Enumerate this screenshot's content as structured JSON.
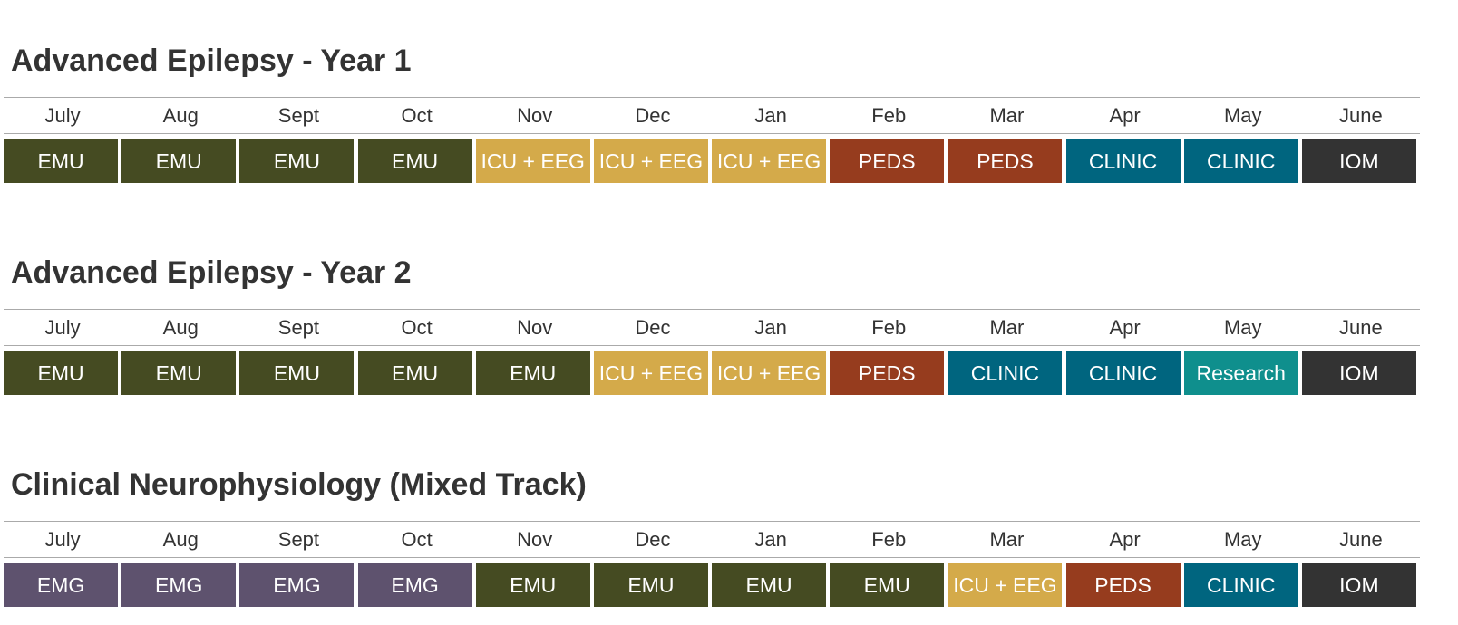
{
  "tracks": [
    {
      "title": "Advanced Epilepsy - Year 1",
      "months": [
        "July",
        "Aug",
        "Sept",
        "Oct",
        "Nov",
        "Dec",
        "Jan",
        "Feb",
        "Mar",
        "Apr",
        "May",
        "June"
      ],
      "rotations": [
        {
          "label": "EMU",
          "color": "#454b22"
        },
        {
          "label": "EMU",
          "color": "#454b22"
        },
        {
          "label": "EMU",
          "color": "#454b22"
        },
        {
          "label": "EMU",
          "color": "#454b22"
        },
        {
          "label": "ICU + EEG",
          "color": "#d4aa4a"
        },
        {
          "label": "ICU + EEG",
          "color": "#d4aa4a"
        },
        {
          "label": "ICU + EEG",
          "color": "#d4aa4a"
        },
        {
          "label": "PEDS",
          "color": "#963c1e"
        },
        {
          "label": "PEDS",
          "color": "#963c1e"
        },
        {
          "label": "CLINIC",
          "color": "#00657f"
        },
        {
          "label": "CLINIC",
          "color": "#00657f"
        },
        {
          "label": "IOM",
          "color": "#333333"
        }
      ]
    },
    {
      "title": "Advanced Epilepsy - Year 2",
      "months": [
        "July",
        "Aug",
        "Sept",
        "Oct",
        "Nov",
        "Dec",
        "Jan",
        "Feb",
        "Mar",
        "Apr",
        "May",
        "June"
      ],
      "rotations": [
        {
          "label": "EMU",
          "color": "#454b22"
        },
        {
          "label": "EMU",
          "color": "#454b22"
        },
        {
          "label": "EMU",
          "color": "#454b22"
        },
        {
          "label": "EMU",
          "color": "#454b22"
        },
        {
          "label": "EMU",
          "color": "#454b22"
        },
        {
          "label": "ICU + EEG",
          "color": "#d4aa4a"
        },
        {
          "label": "ICU + EEG",
          "color": "#d4aa4a"
        },
        {
          "label": "PEDS",
          "color": "#963c1e"
        },
        {
          "label": "CLINIC",
          "color": "#00657f"
        },
        {
          "label": "CLINIC",
          "color": "#00657f"
        },
        {
          "label": "Research",
          "color": "#0f8f8d"
        },
        {
          "label": "IOM",
          "color": "#333333"
        }
      ]
    },
    {
      "title": "Clinical Neurophysiology (Mixed Track)",
      "months": [
        "July",
        "Aug",
        "Sept",
        "Oct",
        "Nov",
        "Dec",
        "Jan",
        "Feb",
        "Mar",
        "Apr",
        "May",
        "June"
      ],
      "rotations": [
        {
          "label": "EMG",
          "color": "#5e526e"
        },
        {
          "label": "EMG",
          "color": "#5e526e"
        },
        {
          "label": "EMG",
          "color": "#5e526e"
        },
        {
          "label": "EMG",
          "color": "#5e526e"
        },
        {
          "label": "EMU",
          "color": "#454b22"
        },
        {
          "label": "EMU",
          "color": "#454b22"
        },
        {
          "label": "EMU",
          "color": "#454b22"
        },
        {
          "label": "EMU",
          "color": "#454b22"
        },
        {
          "label": "ICU + EEG",
          "color": "#d4aa4a"
        },
        {
          "label": "PEDS",
          "color": "#963c1e"
        },
        {
          "label": "CLINIC",
          "color": "#00657f"
        },
        {
          "label": "IOM",
          "color": "#333333"
        }
      ]
    }
  ]
}
